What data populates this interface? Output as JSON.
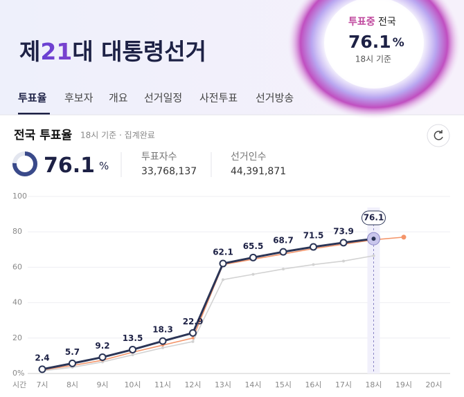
{
  "header": {
    "title_parts": [
      "제",
      "21",
      "대 대통령선거"
    ],
    "status": "투표중",
    "region": "전국",
    "rate": "76.1",
    "rate_unit": "%",
    "basis": "18시 기준"
  },
  "tabs": [
    "투표율",
    "후보자",
    "개요",
    "선거일정",
    "사전투표",
    "선거방송"
  ],
  "summary": {
    "title": "전국 투표율",
    "subtitle": "18시 기준 · 집계완료",
    "rate": 76.1,
    "rate_unit": "%",
    "voters_label": "투표자수",
    "voters": "33,768,137",
    "electors_label": "선거인수",
    "electors": "44,391,871"
  },
  "chart_data": {
    "type": "line",
    "x_label": "시간",
    "categories": [
      "7시",
      "8시",
      "9시",
      "10시",
      "11시",
      "12시",
      "13시",
      "14시",
      "15시",
      "16시",
      "17시",
      "18시",
      "19시",
      "20시"
    ],
    "series": [
      {
        "color": "#d2d2d2",
        "values": [
          1.5,
          3.5,
          6.5,
          10.5,
          14.5,
          18,
          53,
          56,
          59,
          61.5,
          63.5,
          66.5,
          null,
          null
        ]
      },
      {
        "color": "#f4956a",
        "values": [
          2,
          4.5,
          7.5,
          12,
          16,
          20,
          61.5,
          64.5,
          67.5,
          70.5,
          73,
          75.5,
          77,
          null
        ]
      },
      {
        "color": "#2b3556",
        "values": [
          2.4,
          5.7,
          9.2,
          13.5,
          18.3,
          22.9,
          62.1,
          65.5,
          68.7,
          71.5,
          73.9,
          76.1,
          null,
          null
        ]
      }
    ],
    "ylim": [
      0,
      100
    ],
    "yticks": [
      {
        "value": 0,
        "label": "0%"
      },
      20,
      40,
      60,
      80,
      100
    ],
    "grid": true
  }
}
